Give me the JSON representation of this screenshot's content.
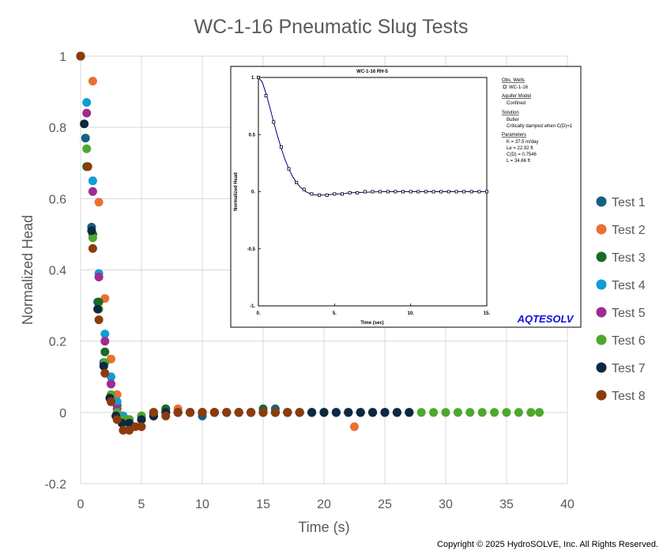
{
  "copyright": "Copyright © 2025 HydroSOLVE, Inc. All Rights Reserved.",
  "chart_data": [
    {
      "type": "scatter",
      "title": "WC-1-16 Pneumatic Slug Tests",
      "xlabel": "Time (s)",
      "ylabel": "Normalized Head",
      "xlim": [
        0,
        40
      ],
      "ylim": [
        -0.2,
        1
      ],
      "xticks": [
        0,
        5,
        10,
        15,
        20,
        25,
        30,
        35,
        40
      ],
      "yticks": [
        -0.2,
        0,
        0.2,
        0.4,
        0.6,
        0.8,
        1
      ],
      "grid": true,
      "legend_position": "right",
      "series": [
        {
          "name": "Test 1",
          "color": "#156082",
          "x": [
            0,
            0.4,
            0.9,
            1.4,
            1.9,
            2.4,
            2.9,
            3.4,
            4,
            5,
            6,
            7,
            8,
            9,
            10,
            11,
            12,
            13,
            14,
            15,
            16,
            17,
            18,
            19,
            20,
            21,
            22,
            23,
            24,
            25,
            26,
            27
          ],
          "y": [
            1,
            0.77,
            0.52,
            0.31,
            0.14,
            0.04,
            -0.01,
            -0.02,
            -0.02,
            -0.02,
            0.0,
            0.01,
            0.0,
            0.0,
            -0.01,
            0.0,
            0.0,
            0.0,
            0.0,
            0.0,
            0.01,
            0.0,
            0.0,
            0.0,
            0.0,
            0.0,
            0.0,
            0.0,
            0.0,
            0.0,
            0.0,
            0.0
          ]
        },
        {
          "name": "Test 2",
          "color": "#E97132",
          "x": [
            0,
            1.0,
            1.5,
            2.0,
            2.5,
            3.0,
            3.5,
            4.0,
            5,
            6,
            7,
            8,
            9,
            10,
            11,
            12,
            13,
            14,
            15,
            16,
            17,
            18,
            19,
            20,
            21,
            22.5
          ],
          "y": [
            1,
            0.93,
            0.59,
            0.32,
            0.15,
            0.05,
            -0.01,
            -0.03,
            -0.02,
            -0.01,
            0.0,
            0.01,
            0.0,
            0.0,
            0.0,
            0.0,
            0.0,
            0.0,
            0.0,
            0.0,
            0.0,
            0.0,
            0.0,
            0.0,
            0.0,
            -0.04
          ]
        },
        {
          "name": "Test 3",
          "color": "#196B24",
          "x": [
            0,
            0.5,
            1.0,
            1.5,
            2.0,
            2.5,
            3.0,
            3.5,
            4.0,
            5,
            6,
            7,
            8,
            9,
            10,
            11,
            12,
            13,
            14,
            15,
            16,
            17,
            18,
            19,
            20,
            21,
            22,
            23,
            24,
            25
          ],
          "y": [
            1,
            0.69,
            0.5,
            0.31,
            0.17,
            0.08,
            0.02,
            -0.02,
            -0.02,
            -0.01,
            0.0,
            0.01,
            0.0,
            0.0,
            0.0,
            0.0,
            0.0,
            0.0,
            0.0,
            0.01,
            0.0,
            0.0,
            0.0,
            0.0,
            0.0,
            0.0,
            0.0,
            0.0,
            0.0,
            0.0
          ]
        },
        {
          "name": "Test 4",
          "color": "#0F9ED5",
          "x": [
            0,
            0.5,
            1.0,
            1.5,
            2.0,
            2.5,
            3.0,
            3.5,
            4.0,
            5,
            6,
            7,
            8,
            9,
            10,
            11,
            12,
            13,
            14,
            15,
            16,
            17,
            18,
            19,
            20,
            21,
            22,
            23,
            24,
            25,
            26
          ],
          "y": [
            1,
            0.87,
            0.65,
            0.39,
            0.22,
            0.1,
            0.03,
            -0.01,
            -0.02,
            -0.02,
            0.0,
            0.0,
            0.0,
            0.0,
            0.0,
            0.0,
            0.0,
            0.0,
            0.0,
            0.0,
            0.0,
            0.0,
            0.0,
            0.0,
            0.0,
            0.0,
            0.0,
            0.0,
            0.0,
            0.0,
            0.0
          ]
        },
        {
          "name": "Test 5",
          "color": "#A02B93",
          "x": [
            0,
            0.5,
            1.0,
            1.5,
            2.0,
            2.5,
            3.0,
            3.5,
            4.0,
            5,
            6,
            7,
            8,
            9,
            10,
            11,
            12,
            13,
            14,
            15,
            16,
            17,
            18,
            19,
            20,
            21,
            22,
            23,
            24,
            25,
            26,
            27
          ],
          "y": [
            1,
            0.84,
            0.62,
            0.38,
            0.2,
            0.08,
            0.01,
            -0.02,
            -0.03,
            -0.02,
            -0.01,
            0.0,
            0.0,
            0.0,
            0.0,
            0.0,
            0.0,
            0.0,
            0.0,
            0.0,
            0.0,
            0.0,
            0.0,
            0.0,
            0.0,
            0.0,
            0.0,
            0.0,
            0.0,
            0.0,
            0.0,
            0.0
          ]
        },
        {
          "name": "Test 6",
          "color": "#4EA72E",
          "x": [
            0,
            0.5,
            1.0,
            1.5,
            2.0,
            2.5,
            3.0,
            3.5,
            4.0,
            5,
            6,
            8,
            10,
            12,
            14,
            16,
            18,
            20,
            22,
            24,
            26,
            27,
            28,
            29,
            30,
            31,
            32,
            33,
            34,
            35,
            36,
            37,
            37.7
          ],
          "y": [
            1,
            0.74,
            0.49,
            0.29,
            0.14,
            0.05,
            0.0,
            -0.02,
            -0.02,
            -0.01,
            0.0,
            0.0,
            0.0,
            0.0,
            0.0,
            0.0,
            0.0,
            0.0,
            0.0,
            0.0,
            0.0,
            0.0,
            0.0,
            0.0,
            0.0,
            0.0,
            0.0,
            0.0,
            0.0,
            0.0,
            0.0,
            0.0,
            0.0
          ]
        },
        {
          "name": "Test 7",
          "color": "#0E2841",
          "x": [
            0,
            0.3,
            0.9,
            1.4,
            1.9,
            2.4,
            2.9,
            3.4,
            4.0,
            5,
            6,
            7,
            8,
            9,
            10,
            11,
            12,
            13,
            14,
            15,
            16,
            17,
            18,
            19,
            20,
            21,
            22,
            23,
            24,
            25,
            26,
            27
          ],
          "y": [
            1,
            0.81,
            0.51,
            0.29,
            0.13,
            0.04,
            -0.01,
            -0.03,
            -0.03,
            -0.02,
            -0.01,
            0.0,
            0.0,
            0.0,
            0.0,
            0.0,
            0.0,
            0.0,
            0.0,
            0.0,
            0.0,
            0.0,
            0.0,
            0.0,
            0.0,
            0.0,
            0.0,
            0.0,
            0.0,
            0.0,
            0.0,
            0.0
          ]
        },
        {
          "name": "Test 8",
          "color": "#8C3B0C",
          "x": [
            0,
            0.6,
            1.0,
            1.5,
            2.0,
            2.5,
            3.0,
            3.5,
            4.0,
            4.5,
            5,
            6,
            7,
            8,
            9,
            10,
            11,
            12,
            13,
            14,
            15,
            16,
            17,
            18
          ],
          "y": [
            1,
            0.69,
            0.46,
            0.26,
            0.11,
            0.03,
            -0.02,
            -0.05,
            -0.05,
            -0.04,
            -0.04,
            0.0,
            -0.01,
            0.0,
            0.0,
            0.0,
            0.0,
            0.0,
            0.0,
            0.0,
            0.0,
            0.0,
            0.0,
            0.0
          ]
        }
      ]
    },
    {
      "type": "line",
      "title": "WC-1-16 RH-5",
      "xlabel": "Time (sec)",
      "ylabel": "Normalized Head",
      "xlim": [
        0,
        15
      ],
      "ylim": [
        -1,
        1
      ],
      "xticks": [
        "0.",
        "5.",
        "10.",
        "15."
      ],
      "yticks": [
        "-1.",
        "-0.5",
        "0.",
        "0.5",
        "1."
      ],
      "brand": "AQTESOLV",
      "panel": {
        "obs_wells_label": "Obs. Wells",
        "obs_well_name": "WC-1-16",
        "aquifer_model_label": "Aquifer Model",
        "aquifer_model": "Confined",
        "solution_label": "Solution",
        "solution_name": "Butler",
        "solution_detail": "Critically damped when C(D)=1",
        "parameters_label": "Parameters",
        "params": [
          "K      = 37.5 m/day",
          "Le     = 22.92 ft",
          "C(D) = 0.7546",
          "L       = 34.66 ft"
        ]
      },
      "obs_x": [
        0,
        0.5,
        1.0,
        1.5,
        2.0,
        2.5,
        3.0,
        3.5,
        4.0,
        4.5,
        5.0,
        5.5,
        6.0,
        6.5,
        7.0,
        7.5,
        8.0,
        8.5,
        9.0,
        9.5,
        10.0,
        10.5,
        11.0,
        11.5,
        12.0,
        12.5,
        13.0,
        13.5,
        14.0,
        14.5,
        15.0
      ],
      "obs_y": [
        1.0,
        0.84,
        0.61,
        0.39,
        0.2,
        0.08,
        0.02,
        -0.02,
        -0.03,
        -0.03,
        -0.02,
        -0.02,
        -0.01,
        -0.01,
        0.0,
        0.0,
        0.0,
        0.0,
        0.0,
        0.0,
        0.0,
        0.0,
        0.0,
        0.0,
        0.0,
        0.0,
        0.0,
        0.0,
        0.0,
        0.0,
        0.0
      ],
      "fit_x": [
        0,
        0.25,
        0.5,
        0.75,
        1.0,
        1.25,
        1.5,
        1.75,
        2.0,
        2.25,
        2.5,
        2.75,
        3.0,
        3.25,
        3.5,
        3.75,
        4.0,
        4.5,
        5.0,
        5.5,
        6.0,
        7.0,
        8.0,
        10.0,
        12.0,
        15.0
      ],
      "fit_y": [
        1.0,
        0.96,
        0.86,
        0.74,
        0.61,
        0.49,
        0.38,
        0.28,
        0.2,
        0.13,
        0.08,
        0.04,
        0.01,
        -0.01,
        -0.02,
        -0.03,
        -0.03,
        -0.03,
        -0.02,
        -0.02,
        -0.01,
        -0.005,
        0.0,
        0.0,
        0.0,
        0.0
      ]
    }
  ]
}
